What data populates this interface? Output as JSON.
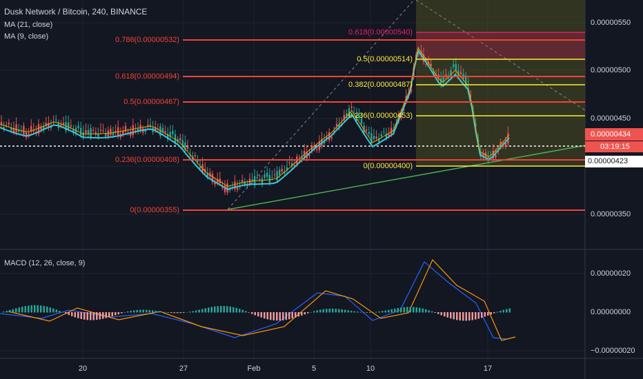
{
  "header": {
    "title": "Dusk Network / Bitcoin, 240, BINANCE",
    "indicators": [
      "MA (21, close)",
      "MA (9, close)"
    ]
  },
  "fib_left": [
    "0.786(0.00000532)",
    "0.618(0.00000494)",
    "0.5(0.00000467)",
    "0.236(0.00000408)",
    "0(0.00000355)"
  ],
  "fib_right": [
    "0.618(0.00000540)",
    "0.5(0.00000514)",
    "0.382(0.00000487)",
    "0.236(0.00000453)",
    "0(0.00000400)"
  ],
  "price_axis": [
    "0.00000550",
    "0.00000500",
    "0.00000450",
    "0.00000350"
  ],
  "price_tags": {
    "last": "0.00000434",
    "countdown": "03:19:15",
    "cursor": "0.00000423"
  },
  "macd": {
    "title": "MACD (12, 26, close, 9)",
    "axis": [
      "0.00000020",
      "0.00000000",
      "−0.00000020"
    ]
  },
  "time_axis": [
    "20",
    "27",
    "Feb",
    "5",
    "10",
    "17"
  ]
}
